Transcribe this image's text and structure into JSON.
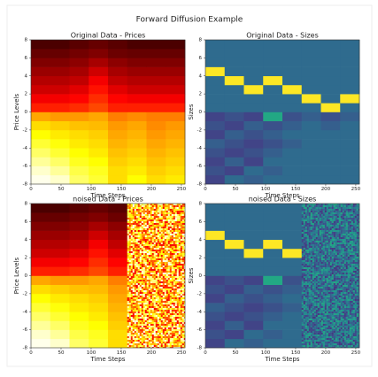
{
  "title": "Forward Diffusion Example",
  "chart_data": [
    {
      "type": "heatmap",
      "title": "Original Data - Prices",
      "xlabel": "Time Steps",
      "ylabel": "Price Levels",
      "colormap": "hot",
      "x_edges": [
        0,
        32,
        64,
        96,
        128,
        160,
        192,
        224,
        256
      ],
      "y_edges": [
        -8,
        -7,
        -6,
        -5,
        -4,
        -3,
        -2,
        -1,
        0,
        1,
        2,
        3,
        4,
        5,
        6,
        7,
        8
      ],
      "xlim": [
        0,
        256
      ],
      "ylim": [
        -8,
        8
      ],
      "xticks": [
        0,
        50,
        100,
        150,
        200,
        250
      ],
      "yticks": [
        -8,
        -6,
        -4,
        -2,
        0,
        2,
        4,
        6,
        8
      ],
      "z": [
        [
          0.98,
          0.95,
          0.85,
          0.8,
          0.7,
          0.75,
          0.7,
          0.72
        ],
        [
          0.95,
          0.9,
          0.82,
          0.78,
          0.7,
          0.72,
          0.68,
          0.7
        ],
        [
          0.9,
          0.85,
          0.78,
          0.75,
          0.68,
          0.7,
          0.66,
          0.68
        ],
        [
          0.85,
          0.8,
          0.75,
          0.72,
          0.66,
          0.68,
          0.64,
          0.66
        ],
        [
          0.8,
          0.76,
          0.72,
          0.7,
          0.64,
          0.66,
          0.62,
          0.64
        ],
        [
          0.75,
          0.72,
          0.7,
          0.68,
          0.62,
          0.64,
          0.6,
          0.62
        ],
        [
          0.7,
          0.68,
          0.66,
          0.65,
          0.6,
          0.62,
          0.58,
          0.6
        ],
        [
          0.62,
          0.6,
          0.6,
          0.62,
          0.56,
          0.58,
          0.56,
          0.56
        ],
        [
          0.42,
          0.42,
          0.44,
          0.48,
          0.42,
          0.42,
          0.42,
          0.42
        ],
        [
          0.36,
          0.36,
          0.38,
          0.44,
          0.38,
          0.36,
          0.36,
          0.36
        ],
        [
          0.3,
          0.3,
          0.33,
          0.4,
          0.33,
          0.3,
          0.3,
          0.3
        ],
        [
          0.26,
          0.26,
          0.28,
          0.36,
          0.28,
          0.26,
          0.26,
          0.26
        ],
        [
          0.22,
          0.22,
          0.24,
          0.3,
          0.24,
          0.22,
          0.22,
          0.22
        ],
        [
          0.18,
          0.18,
          0.2,
          0.24,
          0.2,
          0.18,
          0.18,
          0.18
        ],
        [
          0.14,
          0.14,
          0.16,
          0.18,
          0.15,
          0.14,
          0.14,
          0.14
        ],
        [
          0.1,
          0.1,
          0.12,
          0.14,
          0.12,
          0.1,
          0.1,
          0.1
        ]
      ]
    },
    {
      "type": "heatmap",
      "title": "Original Data - Sizes",
      "ylabel": "Sizes",
      "xlabel": "Time Steps",
      "colormap": "viridis",
      "x_edges": [
        0,
        32,
        64,
        96,
        128,
        160,
        192,
        224,
        256
      ],
      "y_edges": [
        -8,
        -7,
        -6,
        -5,
        -4,
        -3,
        -2,
        -1,
        0,
        1,
        2,
        3,
        4,
        5,
        6,
        7,
        8
      ],
      "xlim": [
        0,
        256
      ],
      "ylim": [
        -8,
        8
      ],
      "xticks": [
        0,
        50,
        100,
        150,
        200,
        250
      ],
      "yticks": [
        -8,
        -6,
        -4,
        -2,
        0,
        2,
        4,
        6,
        8
      ],
      "z": [
        [
          0.2,
          0.35,
          0.3,
          0.35,
          0.35,
          0.35,
          0.35,
          0.35
        ],
        [
          0.25,
          0.2,
          0.35,
          0.3,
          0.35,
          0.35,
          0.35,
          0.35
        ],
        [
          0.2,
          0.3,
          0.2,
          0.35,
          0.35,
          0.35,
          0.35,
          0.35
        ],
        [
          0.25,
          0.2,
          0.25,
          0.3,
          0.35,
          0.35,
          0.35,
          0.35
        ],
        [
          0.3,
          0.25,
          0.2,
          0.25,
          0.3,
          0.35,
          0.35,
          0.35
        ],
        [
          0.2,
          0.3,
          0.25,
          0.3,
          0.35,
          0.35,
          0.35,
          0.35
        ],
        [
          0.25,
          0.2,
          0.3,
          0.25,
          0.3,
          0.35,
          0.3,
          0.35
        ],
        [
          0.2,
          0.25,
          0.2,
          0.6,
          0.25,
          0.3,
          0.25,
          0.3
        ],
        [
          0.35,
          0.35,
          0.35,
          0.35,
          0.35,
          0.35,
          1,
          0.35
        ],
        [
          0.35,
          0.35,
          0.35,
          0.35,
          0.35,
          1,
          0.35,
          1
        ],
        [
          0.35,
          0.35,
          1,
          0.35,
          1,
          0.35,
          0.35,
          0.35
        ],
        [
          0.35,
          1,
          0.35,
          1,
          0.35,
          0.35,
          0.35,
          0.35
        ],
        [
          1,
          0.35,
          0.35,
          0.35,
          0.35,
          0.35,
          0.35,
          0.35
        ],
        [
          0.35,
          0.35,
          0.35,
          0.35,
          0.35,
          0.35,
          0.35,
          0.35
        ],
        [
          0.35,
          0.35,
          0.35,
          0.35,
          0.35,
          0.35,
          0.35,
          0.35
        ],
        [
          0.35,
          0.35,
          0.35,
          0.35,
          0.35,
          0.35,
          0.35,
          0.35
        ]
      ]
    },
    {
      "type": "heatmap",
      "title": "noised Data - Prices",
      "xlabel": "Time Steps",
      "ylabel": "Price Levels",
      "colormap": "hot",
      "noise_from": 160,
      "x_edges": [
        0,
        32,
        64,
        96,
        128,
        160
      ],
      "y_edges": [
        -8,
        -7,
        -6,
        -5,
        -4,
        -3,
        -2,
        -1,
        0,
        1,
        2,
        3,
        4,
        5,
        6,
        7,
        8
      ],
      "xlim": [
        0,
        256
      ],
      "ylim": [
        -8,
        8
      ],
      "xticks": [
        0,
        50,
        100,
        150,
        200,
        250
      ],
      "yticks": [
        -8,
        -6,
        -4,
        -2,
        0,
        2,
        4,
        6,
        8
      ],
      "z": [
        [
          0.98,
          0.95,
          0.85,
          0.8,
          0.7
        ],
        [
          0.95,
          0.9,
          0.82,
          0.78,
          0.7
        ],
        [
          0.9,
          0.85,
          0.78,
          0.75,
          0.68
        ],
        [
          0.85,
          0.8,
          0.75,
          0.72,
          0.66
        ],
        [
          0.8,
          0.76,
          0.72,
          0.7,
          0.64
        ],
        [
          0.75,
          0.72,
          0.7,
          0.68,
          0.62
        ],
        [
          0.7,
          0.68,
          0.66,
          0.65,
          0.6
        ],
        [
          0.62,
          0.6,
          0.6,
          0.62,
          0.56
        ],
        [
          0.42,
          0.42,
          0.44,
          0.48,
          0.42
        ],
        [
          0.36,
          0.36,
          0.38,
          0.44,
          0.38
        ],
        [
          0.3,
          0.3,
          0.33,
          0.4,
          0.33
        ],
        [
          0.26,
          0.26,
          0.28,
          0.36,
          0.28
        ],
        [
          0.22,
          0.22,
          0.24,
          0.3,
          0.24
        ],
        [
          0.18,
          0.18,
          0.2,
          0.24,
          0.2
        ],
        [
          0.14,
          0.14,
          0.16,
          0.18,
          0.15
        ],
        [
          0.1,
          0.1,
          0.12,
          0.14,
          0.12
        ]
      ]
    },
    {
      "type": "heatmap",
      "title": "noised Data - Sizes",
      "ylabel": "Sizes",
      "xlabel": "Time Steps",
      "colormap": "viridis",
      "noise_from": 160,
      "x_edges": [
        0,
        32,
        64,
        96,
        128,
        160
      ],
      "y_edges": [
        -8,
        -7,
        -6,
        -5,
        -4,
        -3,
        -2,
        -1,
        0,
        1,
        2,
        3,
        4,
        5,
        6,
        7,
        8
      ],
      "xlim": [
        0,
        256
      ],
      "ylim": [
        -8,
        8
      ],
      "xticks": [
        0,
        50,
        100,
        150,
        200,
        250
      ],
      "yticks": [
        -8,
        -6,
        -4,
        -2,
        0,
        2,
        4,
        6,
        8
      ],
      "z": [
        [
          0.2,
          0.35,
          0.3,
          0.35,
          0.35
        ],
        [
          0.25,
          0.2,
          0.35,
          0.3,
          0.35
        ],
        [
          0.2,
          0.3,
          0.2,
          0.35,
          0.35
        ],
        [
          0.25,
          0.2,
          0.25,
          0.3,
          0.35
        ],
        [
          0.3,
          0.25,
          0.2,
          0.25,
          0.3
        ],
        [
          0.2,
          0.3,
          0.25,
          0.3,
          0.35
        ],
        [
          0.25,
          0.2,
          0.3,
          0.25,
          0.3
        ],
        [
          0.2,
          0.25,
          0.2,
          0.6,
          0.25
        ],
        [
          0.35,
          0.35,
          0.35,
          0.35,
          0.35
        ],
        [
          0.35,
          0.35,
          0.35,
          0.35,
          0.35
        ],
        [
          0.35,
          0.35,
          1,
          0.35,
          1
        ],
        [
          0.35,
          1,
          0.35,
          1,
          0.35
        ],
        [
          1,
          0.35,
          0.35,
          0.35,
          0.35
        ],
        [
          0.35,
          0.35,
          0.35,
          0.35,
          0.35
        ],
        [
          0.35,
          0.35,
          0.35,
          0.35,
          0.35
        ],
        [
          0.35,
          0.35,
          0.35,
          0.35,
          0.35
        ]
      ]
    }
  ]
}
